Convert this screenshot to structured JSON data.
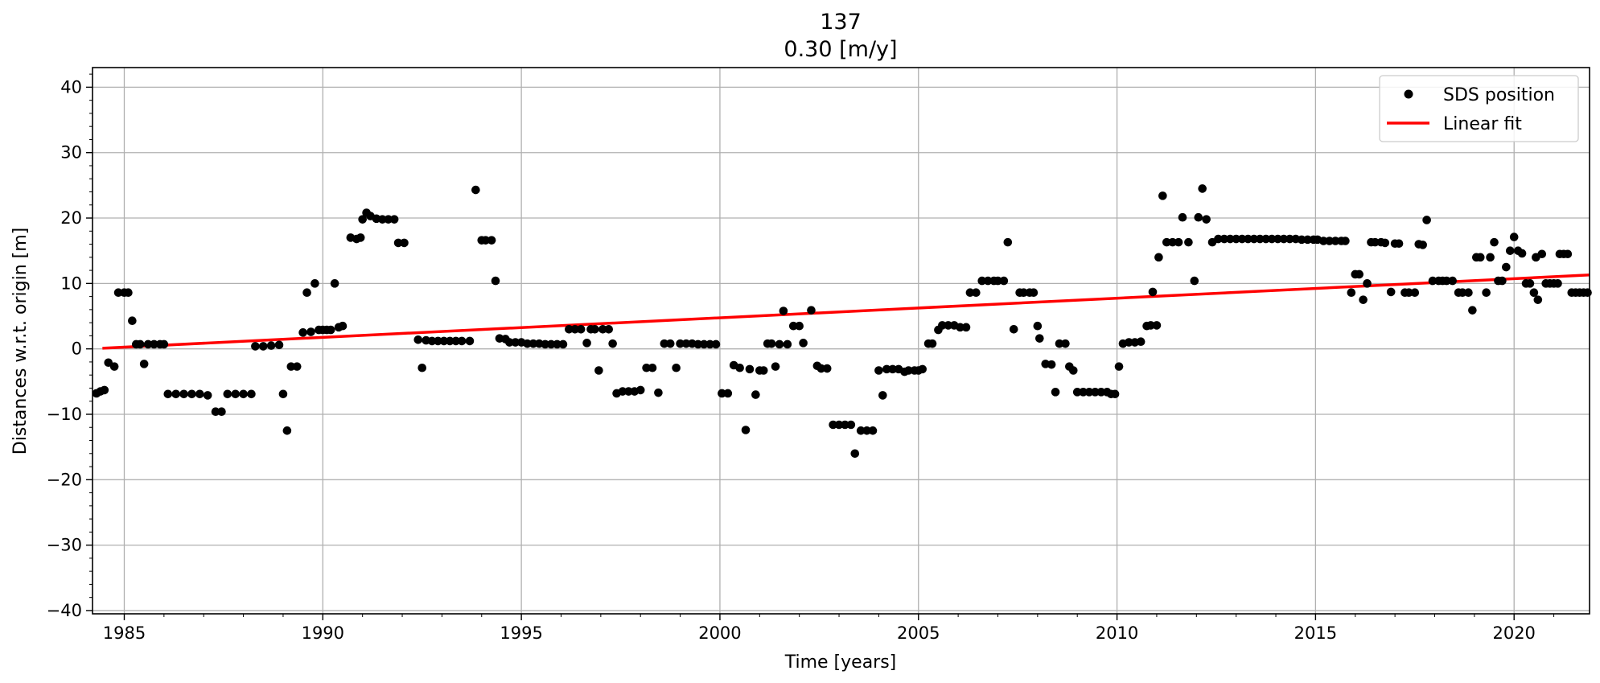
{
  "chart_data": {
    "type": "scatter",
    "title": "137",
    "subtitle": "0.30 [m/y]",
    "xlabel": "Time [years]",
    "ylabel": "Distances w.r.t. origin [m]",
    "xlim": [
      1984.2,
      2021.9
    ],
    "ylim": [
      -40.5,
      43
    ],
    "xticks": [
      1985,
      1990,
      1995,
      2000,
      2005,
      2010,
      2015,
      2020
    ],
    "yticks": [
      -40,
      -30,
      -20,
      -10,
      0,
      10,
      20,
      30,
      40
    ],
    "xtick_labels": [
      "1985",
      "1990",
      "1995",
      "2000",
      "2005",
      "2010",
      "2015",
      "2020"
    ],
    "ytick_labels": [
      "−40",
      "−30",
      "−20",
      "−10",
      "0",
      "10",
      "20",
      "30",
      "40"
    ],
    "grid": true,
    "legend": {
      "position": "top-right",
      "entries": [
        "SDS position",
        "Linear fit"
      ]
    },
    "series": [
      {
        "name": "SDS position",
        "kind": "points",
        "color": "#000000",
        "points": [
          [
            1984.3,
            -6.8
          ],
          [
            1984.4,
            -6.5
          ],
          [
            1984.5,
            -6.3
          ],
          [
            1984.6,
            -2.1
          ],
          [
            1984.75,
            -2.7
          ],
          [
            1984.85,
            8.6
          ],
          [
            1985.0,
            8.6
          ],
          [
            1985.1,
            8.6
          ],
          [
            1985.2,
            4.3
          ],
          [
            1985.3,
            0.7
          ],
          [
            1985.4,
            0.7
          ],
          [
            1985.5,
            -2.3
          ],
          [
            1985.6,
            0.7
          ],
          [
            1985.75,
            0.7
          ],
          [
            1985.9,
            0.7
          ],
          [
            1986.0,
            0.7
          ],
          [
            1986.1,
            -6.9
          ],
          [
            1986.3,
            -6.9
          ],
          [
            1986.5,
            -6.9
          ],
          [
            1986.7,
            -6.9
          ],
          [
            1986.9,
            -6.9
          ],
          [
            1987.1,
            -7.1
          ],
          [
            1987.3,
            -9.6
          ],
          [
            1987.45,
            -9.6
          ],
          [
            1987.6,
            -6.9
          ],
          [
            1987.8,
            -6.9
          ],
          [
            1988.0,
            -6.9
          ],
          [
            1988.2,
            -6.9
          ],
          [
            1988.3,
            0.4
          ],
          [
            1988.5,
            0.4
          ],
          [
            1988.7,
            0.5
          ],
          [
            1988.9,
            0.6
          ],
          [
            1989.0,
            -6.9
          ],
          [
            1989.1,
            -12.5
          ],
          [
            1989.2,
            -2.7
          ],
          [
            1989.35,
            -2.7
          ],
          [
            1989.5,
            2.5
          ],
          [
            1989.6,
            8.6
          ],
          [
            1989.7,
            2.6
          ],
          [
            1989.8,
            10.0
          ],
          [
            1989.9,
            2.9
          ],
          [
            1990.0,
            2.9
          ],
          [
            1990.1,
            2.9
          ],
          [
            1990.2,
            2.9
          ],
          [
            1990.3,
            10.0
          ],
          [
            1990.4,
            3.3
          ],
          [
            1990.5,
            3.5
          ],
          [
            1990.7,
            17.0
          ],
          [
            1990.85,
            16.8
          ],
          [
            1990.95,
            17.0
          ],
          [
            1991.0,
            19.8
          ],
          [
            1991.1,
            20.8
          ],
          [
            1991.2,
            20.3
          ],
          [
            1991.35,
            19.9
          ],
          [
            1991.5,
            19.8
          ],
          [
            1991.65,
            19.8
          ],
          [
            1991.8,
            19.8
          ],
          [
            1991.9,
            16.2
          ],
          [
            1992.05,
            16.2
          ],
          [
            1992.4,
            1.4
          ],
          [
            1992.5,
            -2.9
          ],
          [
            1992.6,
            1.3
          ],
          [
            1992.75,
            1.2
          ],
          [
            1992.9,
            1.2
          ],
          [
            1993.05,
            1.2
          ],
          [
            1993.2,
            1.2
          ],
          [
            1993.35,
            1.2
          ],
          [
            1993.5,
            1.2
          ],
          [
            1993.7,
            1.2
          ],
          [
            1993.85,
            24.3
          ],
          [
            1994.0,
            16.6
          ],
          [
            1994.1,
            16.6
          ],
          [
            1994.25,
            16.6
          ],
          [
            1994.35,
            10.4
          ],
          [
            1994.45,
            1.6
          ],
          [
            1994.6,
            1.5
          ],
          [
            1994.7,
            1.0
          ],
          [
            1994.85,
            1.0
          ],
          [
            1995.0,
            1.0
          ],
          [
            1995.15,
            0.8
          ],
          [
            1995.3,
            0.8
          ],
          [
            1995.45,
            0.8
          ],
          [
            1995.6,
            0.7
          ],
          [
            1995.75,
            0.7
          ],
          [
            1995.9,
            0.7
          ],
          [
            1996.05,
            0.7
          ],
          [
            1996.2,
            3.0
          ],
          [
            1996.35,
            3.0
          ],
          [
            1996.5,
            3.0
          ],
          [
            1996.65,
            0.9
          ],
          [
            1996.75,
            3.0
          ],
          [
            1996.85,
            3.0
          ],
          [
            1996.95,
            -3.3
          ],
          [
            1997.05,
            3.0
          ],
          [
            1997.2,
            3.0
          ],
          [
            1997.3,
            0.8
          ],
          [
            1997.4,
            -6.8
          ],
          [
            1997.55,
            -6.5
          ],
          [
            1997.7,
            -6.5
          ],
          [
            1997.85,
            -6.5
          ],
          [
            1998.0,
            -6.3
          ],
          [
            1998.15,
            -2.9
          ],
          [
            1998.3,
            -2.9
          ],
          [
            1998.45,
            -6.7
          ],
          [
            1998.6,
            0.8
          ],
          [
            1998.75,
            0.8
          ],
          [
            1998.9,
            -2.9
          ],
          [
            1999.0,
            0.8
          ],
          [
            1999.15,
            0.8
          ],
          [
            1999.3,
            0.8
          ],
          [
            1999.45,
            0.7
          ],
          [
            1999.6,
            0.7
          ],
          [
            1999.75,
            0.7
          ],
          [
            1999.9,
            0.7
          ],
          [
            2000.05,
            -6.8
          ],
          [
            2000.2,
            -6.8
          ],
          [
            2000.35,
            -2.5
          ],
          [
            2000.5,
            -2.9
          ],
          [
            2000.65,
            -12.4
          ],
          [
            2000.75,
            -3.1
          ],
          [
            2000.9,
            -7.0
          ],
          [
            2001.0,
            -3.3
          ],
          [
            2001.1,
            -3.3
          ],
          [
            2001.2,
            0.8
          ],
          [
            2001.3,
            0.8
          ],
          [
            2001.4,
            -2.7
          ],
          [
            2001.5,
            0.7
          ],
          [
            2001.6,
            5.8
          ],
          [
            2001.7,
            0.7
          ],
          [
            2001.85,
            3.5
          ],
          [
            2002.0,
            3.5
          ],
          [
            2002.1,
            0.9
          ],
          [
            2002.3,
            5.9
          ],
          [
            2002.45,
            -2.6
          ],
          [
            2002.55,
            -3.0
          ],
          [
            2002.7,
            -3.0
          ],
          [
            2002.85,
            -11.6
          ],
          [
            2003.0,
            -11.6
          ],
          [
            2003.15,
            -11.6
          ],
          [
            2003.3,
            -11.6
          ],
          [
            2003.4,
            -16.0
          ],
          [
            2003.55,
            -12.5
          ],
          [
            2003.7,
            -12.5
          ],
          [
            2003.85,
            -12.5
          ],
          [
            2004.0,
            -3.3
          ],
          [
            2004.1,
            -7.1
          ],
          [
            2004.2,
            -3.1
          ],
          [
            2004.35,
            -3.1
          ],
          [
            2004.5,
            -3.1
          ],
          [
            2004.65,
            -3.5
          ],
          [
            2004.75,
            -3.3
          ],
          [
            2004.9,
            -3.3
          ],
          [
            2005.0,
            -3.3
          ],
          [
            2005.1,
            -3.1
          ],
          [
            2005.25,
            0.8
          ],
          [
            2005.35,
            0.8
          ],
          [
            2005.5,
            2.9
          ],
          [
            2005.6,
            3.6
          ],
          [
            2005.75,
            3.6
          ],
          [
            2005.9,
            3.6
          ],
          [
            2006.05,
            3.3
          ],
          [
            2006.2,
            3.3
          ],
          [
            2006.3,
            8.6
          ],
          [
            2006.45,
            8.6
          ],
          [
            2006.6,
            10.4
          ],
          [
            2006.75,
            10.4
          ],
          [
            2006.9,
            10.4
          ],
          [
            2007.0,
            10.4
          ],
          [
            2007.15,
            10.4
          ],
          [
            2007.25,
            16.3
          ],
          [
            2007.4,
            3.0
          ],
          [
            2007.55,
            8.6
          ],
          [
            2007.65,
            8.6
          ],
          [
            2007.8,
            8.6
          ],
          [
            2007.9,
            8.6
          ],
          [
            2008.0,
            3.5
          ],
          [
            2008.05,
            1.6
          ],
          [
            2008.2,
            -2.3
          ],
          [
            2008.35,
            -2.4
          ],
          [
            2008.45,
            -6.6
          ],
          [
            2008.55,
            0.8
          ],
          [
            2008.7,
            0.8
          ],
          [
            2008.8,
            -2.7
          ],
          [
            2008.9,
            -3.3
          ],
          [
            2009.0,
            -6.6
          ],
          [
            2009.15,
            -6.6
          ],
          [
            2009.3,
            -6.6
          ],
          [
            2009.45,
            -6.6
          ],
          [
            2009.6,
            -6.6
          ],
          [
            2009.75,
            -6.6
          ],
          [
            2009.85,
            -6.9
          ],
          [
            2009.95,
            -6.9
          ],
          [
            2010.05,
            -2.7
          ],
          [
            2010.15,
            0.8
          ],
          [
            2010.3,
            1.0
          ],
          [
            2010.45,
            1.0
          ],
          [
            2010.6,
            1.1
          ],
          [
            2010.75,
            3.5
          ],
          [
            2010.85,
            3.6
          ],
          [
            2011.0,
            3.6
          ],
          [
            2010.9,
            8.7
          ],
          [
            2011.05,
            14.0
          ],
          [
            2011.15,
            23.4
          ],
          [
            2011.25,
            16.3
          ],
          [
            2011.4,
            16.3
          ],
          [
            2011.55,
            16.3
          ],
          [
            2011.65,
            20.1
          ],
          [
            2011.8,
            16.3
          ],
          [
            2011.95,
            10.4
          ],
          [
            2012.05,
            20.1
          ],
          [
            2012.15,
            24.5
          ],
          [
            2012.25,
            19.8
          ],
          [
            2012.4,
            16.3
          ],
          [
            2012.55,
            16.8
          ],
          [
            2012.7,
            16.8
          ],
          [
            2012.85,
            16.8
          ],
          [
            2013.0,
            16.8
          ],
          [
            2013.15,
            16.8
          ],
          [
            2013.3,
            16.8
          ],
          [
            2013.45,
            16.8
          ],
          [
            2013.6,
            16.8
          ],
          [
            2013.75,
            16.8
          ],
          [
            2013.9,
            16.8
          ],
          [
            2014.05,
            16.8
          ],
          [
            2014.2,
            16.8
          ],
          [
            2014.35,
            16.8
          ],
          [
            2014.5,
            16.8
          ],
          [
            2014.65,
            16.7
          ],
          [
            2014.8,
            16.7
          ],
          [
            2014.95,
            16.7
          ],
          [
            2015.05,
            16.7
          ],
          [
            2015.2,
            16.5
          ],
          [
            2015.35,
            16.5
          ],
          [
            2015.5,
            16.5
          ],
          [
            2015.65,
            16.5
          ],
          [
            2015.75,
            16.5
          ],
          [
            2015.9,
            8.6
          ],
          [
            2016.0,
            11.4
          ],
          [
            2016.1,
            11.4
          ],
          [
            2016.2,
            7.5
          ],
          [
            2016.3,
            10.0
          ],
          [
            2016.4,
            16.3
          ],
          [
            2016.5,
            16.3
          ],
          [
            2016.65,
            16.3
          ],
          [
            2016.75,
            16.2
          ],
          [
            2016.9,
            8.7
          ],
          [
            2017.0,
            16.1
          ],
          [
            2017.1,
            16.1
          ],
          [
            2017.25,
            8.6
          ],
          [
            2017.35,
            8.6
          ],
          [
            2017.5,
            8.6
          ],
          [
            2017.6,
            16.0
          ],
          [
            2017.7,
            15.9
          ],
          [
            2017.8,
            19.7
          ],
          [
            2017.95,
            10.4
          ],
          [
            2018.1,
            10.4
          ],
          [
            2018.2,
            10.4
          ],
          [
            2018.3,
            10.4
          ],
          [
            2018.45,
            10.4
          ],
          [
            2018.6,
            8.6
          ],
          [
            2018.7,
            8.6
          ],
          [
            2018.85,
            8.6
          ],
          [
            2018.95,
            5.9
          ],
          [
            2019.05,
            14.0
          ],
          [
            2019.15,
            14.0
          ],
          [
            2019.3,
            8.6
          ],
          [
            2019.4,
            14.0
          ],
          [
            2019.5,
            16.3
          ],
          [
            2019.6,
            10.4
          ],
          [
            2019.7,
            10.4
          ],
          [
            2019.8,
            12.5
          ],
          [
            2019.9,
            15.0
          ],
          [
            2020.0,
            17.1
          ],
          [
            2020.1,
            15.0
          ],
          [
            2020.2,
            14.6
          ],
          [
            2020.3,
            10.0
          ],
          [
            2020.4,
            10.0
          ],
          [
            2020.5,
            8.6
          ],
          [
            2020.55,
            14.0
          ],
          [
            2020.6,
            7.5
          ],
          [
            2020.7,
            14.5
          ],
          [
            2020.8,
            10.0
          ],
          [
            2020.9,
            10.0
          ],
          [
            2021.0,
            10.0
          ],
          [
            2021.1,
            10.0
          ],
          [
            2021.15,
            14.5
          ],
          [
            2021.25,
            14.5
          ],
          [
            2021.35,
            14.5
          ],
          [
            2021.45,
            8.6
          ],
          [
            2021.55,
            8.6
          ],
          [
            2021.65,
            8.6
          ],
          [
            2021.75,
            8.6
          ],
          [
            2021.85,
            8.6
          ]
        ]
      },
      {
        "name": "Linear fit",
        "kind": "line",
        "color": "#ff0000",
        "x": [
          1984.45,
          2021.9
        ],
        "y": [
          0.1,
          11.3
        ]
      }
    ]
  }
}
